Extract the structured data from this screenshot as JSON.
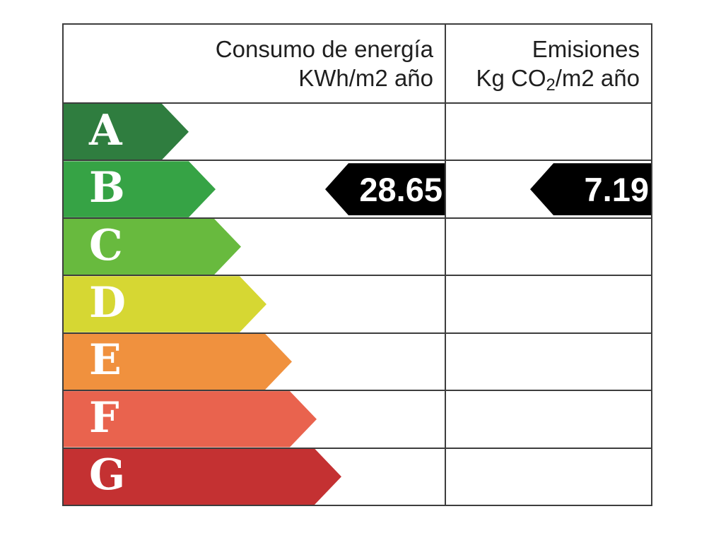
{
  "table": {
    "columns": [
      {
        "title": "Consumo de energía",
        "unit": "KWh/m2 año"
      },
      {
        "title": "Emisiones",
        "unit_prefix": "Kg CO",
        "unit_sub": "2",
        "unit_suffix": "/m2 año"
      }
    ],
    "ratings": [
      {
        "letter": "A",
        "color": "#2f7d3f"
      },
      {
        "letter": "B",
        "color": "#36a345"
      },
      {
        "letter": "C",
        "color": "#68ba3e"
      },
      {
        "letter": "D",
        "color": "#d6d733"
      },
      {
        "letter": "E",
        "color": "#f0913e"
      },
      {
        "letter": "F",
        "color": "#e9634e"
      },
      {
        "letter": "G",
        "color": "#c43132"
      }
    ],
    "current_rating": {
      "letter": "B",
      "consumption_value": "28.65",
      "emissions_value": "7.19",
      "marker_color": "#000000",
      "marker_text_color": "#ffffff"
    },
    "border_color": "#3d3d3d"
  },
  "chart_data": {
    "type": "bar",
    "subtype": "energy-rating-label",
    "categories": [
      "A",
      "B",
      "C",
      "D",
      "E",
      "F",
      "G"
    ],
    "category_colors": [
      "#2f7d3f",
      "#36a345",
      "#68ba3e",
      "#d6d733",
      "#f0913e",
      "#e9634e",
      "#c43132"
    ],
    "columns": [
      "Consumo de energía KWh/m2 año",
      "Emisiones Kg CO2/m2 año"
    ],
    "rated_category": "B",
    "values": {
      "consumo_de_energia_kwh_m2_ano": 28.65,
      "emisiones_kg_co2_m2_ano": 7.19
    },
    "legend_position": "none",
    "grid": true
  }
}
